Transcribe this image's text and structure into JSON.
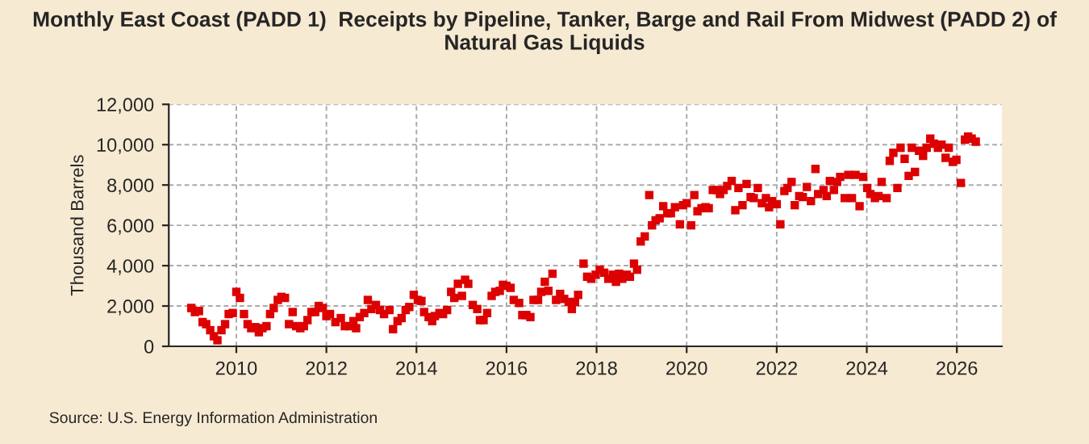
{
  "chart_data": {
    "type": "scatter",
    "title": "Monthly East Coast (PADD 1)  Receipts by Pipeline, Tanker, Barge and Rail From Midwest (PADD 2) of Natural Gas Liquids",
    "ylabel": "Thousand Barrels",
    "annotations": [
      "Source: U.S. Energy Information Administration"
    ],
    "xlim": [
      2008.5,
      2027
    ],
    "xticks": [
      2010,
      2012,
      2014,
      2016,
      2018,
      2020,
      2022,
      2024,
      2026
    ],
    "ylim": [
      0,
      12000
    ],
    "yticks": [
      {
        "value": 0,
        "label": "0"
      },
      {
        "value": 2000,
        "label": "2,000"
      },
      {
        "value": 4000,
        "label": "4,000"
      },
      {
        "value": 6000,
        "label": "6,000"
      },
      {
        "value": 8000,
        "label": "8,000"
      },
      {
        "value": 10000,
        "label": "10,000"
      },
      {
        "value": 12000,
        "label": "12,000"
      }
    ],
    "grid": true,
    "marker": "square",
    "legend": false,
    "series": [
      {
        "color": "#dd0000",
        "x": [
          2009.0,
          2009.08,
          2009.17,
          2009.25,
          2009.33,
          2009.42,
          2009.5,
          2009.58,
          2009.67,
          2009.75,
          2009.83,
          2009.92,
          2010.0,
          2010.08,
          2010.17,
          2010.25,
          2010.33,
          2010.42,
          2010.5,
          2010.58,
          2010.67,
          2010.75,
          2010.83,
          2010.92,
          2011.0,
          2011.08,
          2011.17,
          2011.25,
          2011.33,
          2011.42,
          2011.5,
          2011.58,
          2011.67,
          2011.75,
          2011.83,
          2011.92,
          2012.0,
          2012.08,
          2012.2,
          2012.32,
          2012.41,
          2012.5,
          2012.6,
          2012.66,
          2012.74,
          2012.84,
          2012.92,
          2013.0,
          2013.1,
          2013.19,
          2013.28,
          2013.4,
          2013.48,
          2013.58,
          2013.67,
          2013.76,
          2013.84,
          2013.94,
          2014.03,
          2014.11,
          2014.17,
          2014.27,
          2014.35,
          2014.41,
          2014.51,
          2014.59,
          2014.68,
          2014.77,
          2014.84,
          2014.92,
          2015.01,
          2015.08,
          2015.15,
          2015.25,
          2015.35,
          2015.41,
          2015.49,
          2015.57,
          2015.67,
          2015.75,
          2015.85,
          2015.92,
          2016.0,
          2016.09,
          2016.16,
          2016.28,
          2016.35,
          2016.44,
          2016.53,
          2016.6,
          2016.7,
          2016.77,
          2016.85,
          2016.93,
          2017.02,
          2017.1,
          2017.19,
          2017.28,
          2017.38,
          2017.45,
          2017.52,
          2017.59,
          2017.71,
          2017.79,
          2017.88,
          2017.98,
          2018.07,
          2018.17,
          2018.26,
          2018.36,
          2018.43,
          2018.5,
          2018.57,
          2018.67,
          2018.74,
          2018.83,
          2018.9,
          2018.98,
          2019.07,
          2019.17,
          2019.23,
          2019.31,
          2019.4,
          2019.48,
          2019.57,
          2019.65,
          2019.74,
          2019.85,
          2019.92,
          2020.0,
          2020.1,
          2020.17,
          2020.24,
          2020.33,
          2020.42,
          2020.49,
          2020.58,
          2020.67,
          2020.74,
          2020.82,
          2020.9,
          2021.0,
          2021.08,
          2021.15,
          2021.24,
          2021.33,
          2021.42,
          2021.49,
          2021.58,
          2021.67,
          2021.76,
          2021.83,
          2021.9,
          2022.0,
          2022.08,
          2022.17,
          2022.24,
          2022.33,
          2022.4,
          2022.5,
          2022.58,
          2022.67,
          2022.76,
          2022.86,
          2022.92,
          2023.04,
          2023.11,
          2023.18,
          2023.27,
          2023.34,
          2023.41,
          2023.51,
          2023.59,
          2023.67,
          2023.75,
          2023.84,
          2023.92,
          2024.01,
          2024.08,
          2024.18,
          2024.26,
          2024.33,
          2024.44,
          2024.51,
          2024.59,
          2024.68,
          2024.75,
          2024.84,
          2024.93,
          2025.0,
          2025.07,
          2025.16,
          2025.25,
          2025.33,
          2025.41,
          2025.49,
          2025.58,
          2025.66,
          2025.75,
          2025.82,
          2025.91,
          2025.99,
          2026.09,
          2026.18,
          2026.25,
          2026.33,
          2026.42
        ],
        "values": [
          1900,
          1700,
          1750,
          1200,
          1100,
          800,
          500,
          300,
          800,
          1100,
          1600,
          1650,
          2700,
          2400,
          1600,
          1100,
          900,
          950,
          700,
          900,
          1000,
          1600,
          1900,
          2300,
          2450,
          2400,
          1100,
          1700,
          1000,
          900,
          1000,
          1300,
          1700,
          1700,
          2000,
          1900,
          1500,
          1600,
          1200,
          1400,
          1000,
          1000,
          1250,
          900,
          1450,
          1650,
          2300,
          1850,
          2050,
          1800,
          1600,
          1800,
          850,
          1250,
          1400,
          1800,
          1950,
          2550,
          2300,
          2250,
          1700,
          1450,
          1250,
          1500,
          1650,
          1600,
          1800,
          2700,
          2400,
          3100,
          2500,
          3300,
          3100,
          2050,
          1850,
          1300,
          1300,
          1650,
          2500,
          2700,
          2750,
          3050,
          3000,
          2900,
          2300,
          2150,
          1550,
          1550,
          1450,
          2300,
          2300,
          2700,
          3200,
          2750,
          3600,
          2300,
          2600,
          2350,
          2200,
          1850,
          2200,
          2550,
          4100,
          3450,
          3350,
          3550,
          3800,
          3650,
          3350,
          3550,
          3200,
          3600,
          3350,
          3550,
          3450,
          4100,
          3800,
          5200,
          5450,
          7500,
          6000,
          6250,
          6350,
          6950,
          6600,
          6600,
          6900,
          6050,
          7000,
          7100,
          6000,
          7500,
          6700,
          6850,
          6900,
          6850,
          7750,
          7750,
          7550,
          7750,
          7950,
          8200,
          6750,
          7850,
          7000,
          8050,
          7400,
          7350,
          7850,
          7100,
          7350,
          6900,
          7200,
          7050,
          6050,
          7700,
          7850,
          8150,
          7000,
          7450,
          7400,
          7900,
          7200,
          8800,
          7550,
          7750,
          7450,
          8200,
          7750,
          8150,
          8400,
          7350,
          8500,
          7350,
          8500,
          6950,
          8400,
          7850,
          7550,
          7350,
          7450,
          8150,
          7350,
          9200,
          9600,
          7850,
          9850,
          9300,
          8450,
          9850,
          8650,
          9700,
          9450,
          9850,
          10300,
          10050,
          9850,
          10000,
          9350,
          9850,
          9150,
          9250,
          8100,
          10250,
          10400,
          10300,
          10150
        ]
      }
    ]
  }
}
